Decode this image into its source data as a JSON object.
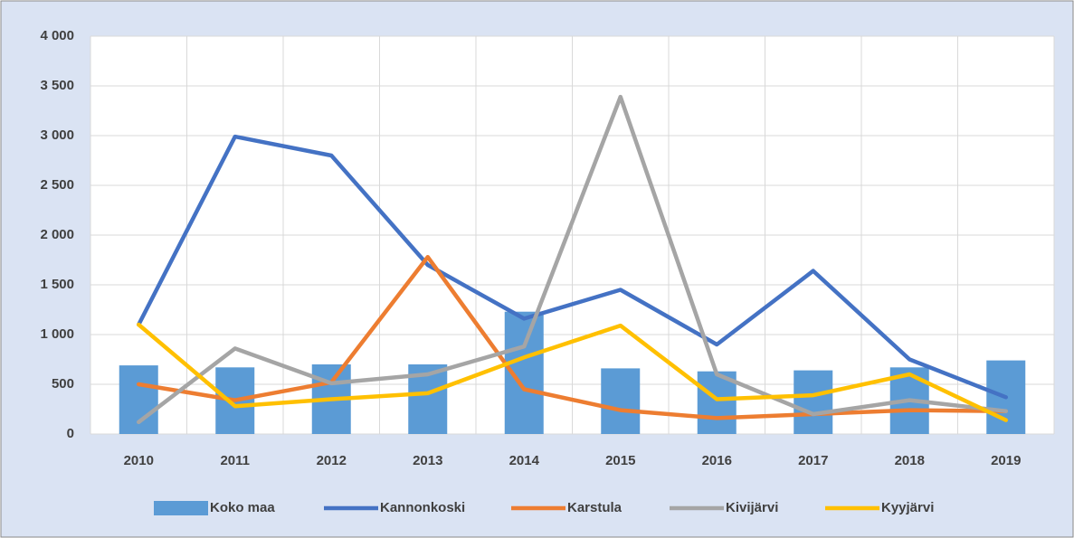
{
  "chart_data": {
    "type": "bar",
    "categories": [
      "2010",
      "2011",
      "2012",
      "2013",
      "2014",
      "2015",
      "2016",
      "2017",
      "2018",
      "2019"
    ],
    "series": [
      {
        "name": "Koko maa",
        "type": "bar",
        "color": "#5b9bd5",
        "values": [
          690,
          670,
          700,
          700,
          1230,
          660,
          630,
          640,
          670,
          740
        ]
      },
      {
        "name": "Kannonkoski",
        "type": "line",
        "color": "#4472c4",
        "values": [
          1100,
          2990,
          2800,
          1700,
          1160,
          1450,
          900,
          1640,
          750,
          370
        ]
      },
      {
        "name": "Karstula",
        "type": "line",
        "color": "#ed7d31",
        "values": [
          500,
          340,
          520,
          1780,
          450,
          240,
          160,
          200,
          240,
          230
        ]
      },
      {
        "name": "Kivijärvi",
        "type": "line",
        "color": "#a5a5a5",
        "values": [
          120,
          860,
          510,
          600,
          880,
          3390,
          600,
          200,
          340,
          230
        ]
      },
      {
        "name": "Kyyjärvi",
        "type": "line",
        "color": "#ffc000",
        "values": [
          1100,
          280,
          350,
          410,
          770,
          1090,
          350,
          390,
          600,
          140
        ]
      }
    ],
    "ylim": [
      0,
      4000
    ],
    "yticks": [
      {
        "value": 0,
        "label": "0"
      },
      {
        "value": 500,
        "label": "500"
      },
      {
        "value": 1000,
        "label": "1 000"
      },
      {
        "value": 1500,
        "label": "1 500"
      },
      {
        "value": 2000,
        "label": "2 000"
      },
      {
        "value": 2500,
        "label": "2 500"
      },
      {
        "value": 3000,
        "label": "3 000"
      },
      {
        "value": 3500,
        "label": "3 500"
      },
      {
        "value": 4000,
        "label": "4 000"
      }
    ],
    "grid": true,
    "legend": "bottom"
  }
}
